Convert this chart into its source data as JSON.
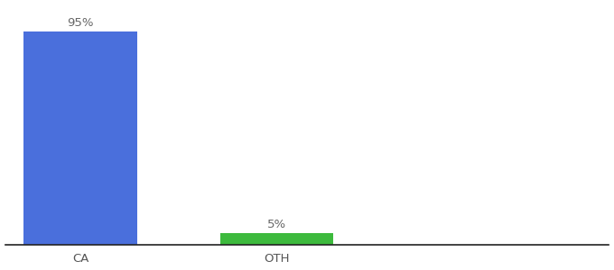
{
  "categories": [
    "CA",
    "OTH"
  ],
  "values": [
    95,
    5
  ],
  "bar_colors": [
    "#4a6fdc",
    "#3dba3d"
  ],
  "value_labels": [
    "95%",
    "5%"
  ],
  "ylim": [
    0,
    107
  ],
  "xlim": [
    -0.5,
    3.5
  ],
  "background_color": "#ffffff",
  "label_fontsize": 9.5,
  "tick_fontsize": 9.5,
  "bar_width": 0.75,
  "x_positions": [
    0,
    1.3
  ]
}
